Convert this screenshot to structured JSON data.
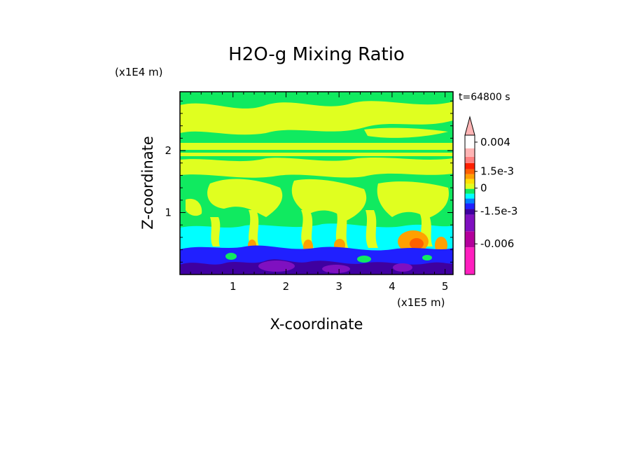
{
  "chart_data": {
    "type": "heatmap",
    "title": "H2O-g Mixing Ratio",
    "xlabel": "X-coordinate",
    "ylabel": "Z-coordinate",
    "x_unit": "(x1E5 m)",
    "y_unit": "(x1E4 m)",
    "time_label": "t=64800 s",
    "xlim": [
      0,
      5.15
    ],
    "ylim": [
      0,
      2.95
    ],
    "x_ticks": [
      1,
      2,
      3,
      4,
      5
    ],
    "x_tick_labels": [
      "1",
      "2",
      "3",
      "4",
      "5"
    ],
    "y_ticks": [
      1,
      2
    ],
    "y_tick_labels": [
      "1",
      "2"
    ],
    "colorbar": {
      "colors": [
        "#ff1fbf",
        "#b4009c",
        "#7f10c0",
        "#3f00a0",
        "#2020ff",
        "#0080ff",
        "#00ffff",
        "#10ea60",
        "#e0ff20",
        "#ffe000",
        "#ffa000",
        "#ff6000",
        "#ff2000",
        "#ff8080",
        "#ffb4b4"
      ],
      "fractions": [
        0.195,
        0.115,
        0.12,
        0.04,
        0.04,
        0.035,
        0.035,
        0.035,
        0.035,
        0.035,
        0.035,
        0.035,
        0.045,
        0.045,
        0.06
      ],
      "labels": [
        "-0.006",
        "-1.5e-3",
        "0",
        "1.5e-3",
        "0.004"
      ],
      "label_values": [
        -0.006,
        -0.0015,
        0,
        0.0015,
        0.004
      ]
    }
  }
}
